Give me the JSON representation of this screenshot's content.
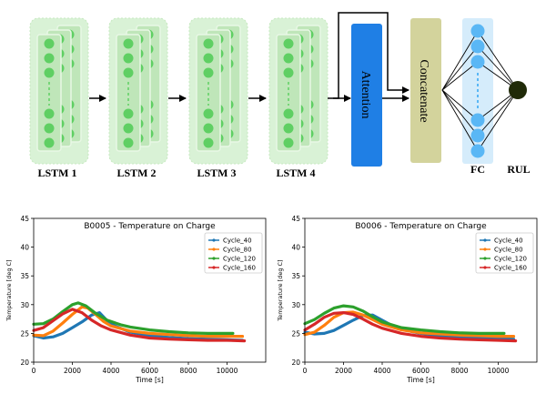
{
  "architecture": {
    "lstm_labels": [
      "LSTM 1",
      "LSTM 2",
      "LSTM 3",
      "LSTM 4"
    ],
    "attention_label": "Attention",
    "concatenate_label": "Concatenate",
    "fc_label": "FC",
    "rul_label": "RUL",
    "colors": {
      "lstm_outer": "#d9f2d6",
      "lstm_card": "#bfe6b9",
      "lstm_node": "#5fcf63",
      "attention": "#1f7fe5",
      "concatenate": "#d3d39c",
      "fc_panel": "#d5ecfb",
      "fc_node": "#5ab7f5",
      "rul_node": "#202a08"
    }
  },
  "chart_data": [
    {
      "type": "line",
      "title": "B0005 - Temperature on Charge",
      "xlabel": "Time [s]",
      "ylabel": "Temperature [deg C]",
      "xlim": [
        0,
        12000
      ],
      "ylim": [
        20,
        45
      ],
      "xticks": [
        0,
        2000,
        4000,
        6000,
        8000,
        10000
      ],
      "yticks": [
        20,
        25,
        30,
        35,
        40,
        45
      ],
      "legend_position": "top-right",
      "series": [
        {
          "name": "Cycle_40",
          "color": "#1f77b4",
          "x": [
            0,
            500,
            1000,
            1500,
            2000,
            2500,
            3000,
            3400,
            3800,
            4200,
            5000,
            6000,
            7000,
            8000,
            9000,
            10000,
            10800
          ],
          "y": [
            24.6,
            24.2,
            24.4,
            25.0,
            26.0,
            27.0,
            28.2,
            28.6,
            27.2,
            26.3,
            25.2,
            24.6,
            24.3,
            24.1,
            24.0,
            23.9,
            23.8
          ]
        },
        {
          "name": "Cycle_80",
          "color": "#ff7f0e",
          "x": [
            0,
            500,
            1000,
            1500,
            2000,
            2500,
            2800,
            3200,
            3600,
            4000,
            5000,
            6000,
            7000,
            8000,
            9000,
            10000,
            10800
          ],
          "y": [
            24.7,
            24.6,
            25.4,
            26.8,
            28.3,
            29.6,
            29.4,
            28.3,
            27.1,
            26.3,
            25.4,
            25.0,
            24.8,
            24.6,
            24.5,
            24.5,
            24.5
          ]
        },
        {
          "name": "Cycle_120",
          "color": "#2ca02c",
          "x": [
            0,
            500,
            1000,
            1500,
            2000,
            2300,
            2700,
            3200,
            3800,
            4500,
            5000,
            6000,
            7000,
            8000,
            9000,
            10000,
            10300
          ],
          "y": [
            26.6,
            26.7,
            27.5,
            28.8,
            30.0,
            30.3,
            29.8,
            28.5,
            27.3,
            26.5,
            26.1,
            25.6,
            25.3,
            25.1,
            25.0,
            25.0,
            25.0
          ]
        },
        {
          "name": "Cycle_160",
          "color": "#d62728",
          "x": [
            0,
            500,
            1000,
            1500,
            2000,
            2500,
            3000,
            3500,
            4000,
            5000,
            6000,
            7000,
            8000,
            9000,
            10000,
            10900
          ],
          "y": [
            25.5,
            26.0,
            27.2,
            28.4,
            29.2,
            28.6,
            27.3,
            26.3,
            25.6,
            24.7,
            24.2,
            24.0,
            23.9,
            23.8,
            23.8,
            23.7
          ]
        }
      ]
    },
    {
      "type": "line",
      "title": "B0006 - Temperature on Charge",
      "xlabel": "Time [s]",
      "ylabel": "Temperature [deg C]",
      "xlim": [
        0,
        12000
      ],
      "ylim": [
        20,
        45
      ],
      "xticks": [
        0,
        2000,
        4000,
        6000,
        8000,
        10000
      ],
      "yticks": [
        20,
        25,
        30,
        35,
        40,
        45
      ],
      "legend_position": "top-right",
      "series": [
        {
          "name": "Cycle_40",
          "color": "#1f77b4",
          "x": [
            0,
            500,
            1000,
            1500,
            2000,
            2500,
            3000,
            3500,
            4000,
            4500,
            5000,
            6000,
            7000,
            8000,
            9000,
            10000,
            10800
          ],
          "y": [
            25.2,
            24.9,
            25.0,
            25.5,
            26.4,
            27.3,
            28.1,
            28.2,
            27.3,
            26.4,
            25.7,
            25.0,
            24.6,
            24.4,
            24.2,
            24.1,
            24.0
          ]
        },
        {
          "name": "Cycle_80",
          "color": "#ff7f0e",
          "x": [
            0,
            500,
            1000,
            1500,
            2000,
            2500,
            3000,
            3500,
            4000,
            5000,
            6000,
            7000,
            8000,
            9000,
            10000,
            10800
          ],
          "y": [
            24.8,
            25.2,
            26.4,
            27.8,
            28.6,
            28.7,
            28.2,
            27.4,
            26.6,
            25.6,
            25.1,
            24.9,
            24.7,
            24.6,
            24.5,
            24.5
          ]
        },
        {
          "name": "Cycle_120",
          "color": "#2ca02c",
          "x": [
            0,
            500,
            1000,
            1500,
            2000,
            2500,
            3000,
            3500,
            4000,
            5000,
            6000,
            7000,
            8000,
            9000,
            10000,
            10300
          ],
          "y": [
            26.7,
            27.4,
            28.5,
            29.4,
            29.8,
            29.6,
            28.9,
            27.9,
            27.0,
            26.0,
            25.6,
            25.3,
            25.1,
            25.0,
            25.0,
            25.0
          ]
        },
        {
          "name": "Cycle_160",
          "color": "#d62728",
          "x": [
            0,
            500,
            1000,
            1500,
            2000,
            2500,
            3000,
            3500,
            4000,
            5000,
            6000,
            7000,
            8000,
            9000,
            10000,
            10900
          ],
          "y": [
            25.6,
            26.6,
            27.8,
            28.5,
            28.6,
            28.3,
            27.5,
            26.6,
            25.9,
            25.0,
            24.5,
            24.2,
            24.0,
            23.9,
            23.8,
            23.7
          ]
        }
      ]
    }
  ]
}
